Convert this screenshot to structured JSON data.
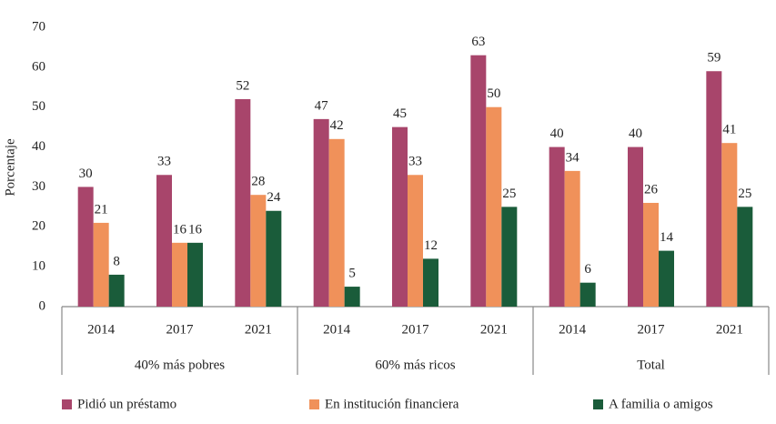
{
  "chart_data": {
    "type": "bar",
    "y_label": "Porcentaje",
    "categories": [
      "2014",
      "2017",
      "2021",
      "2014",
      "2017",
      "2021",
      "2014",
      "2017",
      "2021"
    ],
    "groups": [
      "40% más pobres",
      "60% más ricos",
      "Total"
    ],
    "series": [
      {
        "name": "Pidió un préstamo",
        "color": "#a8456b",
        "values": [
          30,
          33,
          52,
          47,
          45,
          63,
          40,
          40,
          59
        ]
      },
      {
        "name": "En institución financiera",
        "color": "#f0915a",
        "values": [
          21,
          16,
          28,
          42,
          33,
          50,
          34,
          26,
          41
        ]
      },
      {
        "name": "A familia o amigos",
        "color": "#1a5c3a",
        "values": [
          8,
          16,
          24,
          5,
          12,
          25,
          6,
          14,
          25
        ]
      }
    ],
    "ylim": [
      0,
      70
    ],
    "yticks": [
      0,
      10,
      20,
      30,
      40,
      50,
      60,
      70
    ],
    "grid": false,
    "legend": "bottom"
  }
}
